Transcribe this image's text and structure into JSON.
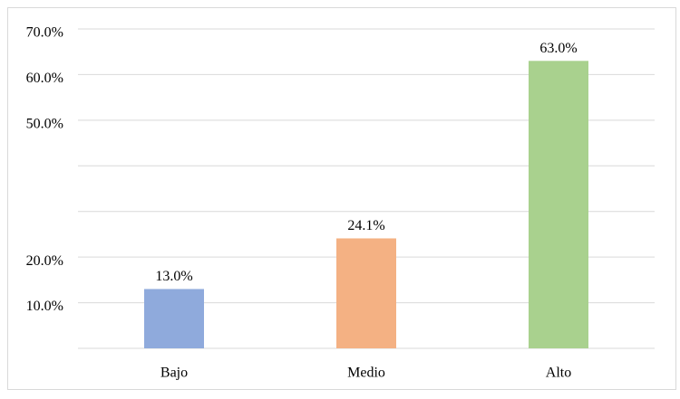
{
  "chart_data": {
    "type": "bar",
    "categories": [
      "Bajo",
      "Medio",
      "Alto"
    ],
    "values": [
      13.0,
      24.1,
      63.0
    ],
    "value_labels": [
      "13.0%",
      "24.1%",
      "63.0%"
    ],
    "colors": [
      "#8faadc",
      "#f4b183",
      "#a9d18e"
    ],
    "ylim": [
      0,
      70
    ],
    "yticks": [
      {
        "value": 0,
        "label": null
      },
      {
        "value": 10,
        "label": "10.0%"
      },
      {
        "value": 20,
        "label": "20.0%"
      },
      {
        "value": 30,
        "label": null
      },
      {
        "value": 40,
        "label": null
      },
      {
        "value": 50,
        "label": "50.0%"
      },
      {
        "value": 60,
        "label": "60.0%"
      },
      {
        "value": 70,
        "label": "70.0%"
      }
    ],
    "grid": true
  }
}
